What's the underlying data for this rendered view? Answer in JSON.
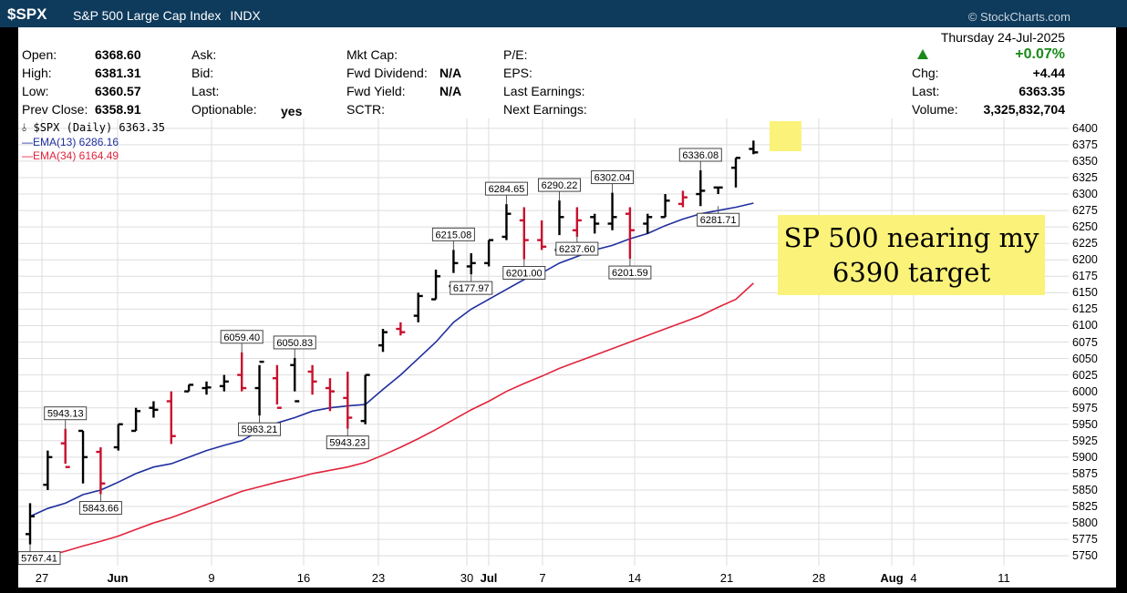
{
  "header": {
    "symbol": "$SPX",
    "name": "S&P 500 Large Cap Index",
    "exchange": "INDX",
    "credit": "© StockCharts.com"
  },
  "info": {
    "open_label": "Open:",
    "open_value": "6368.60",
    "high_label": "High:",
    "high_value": "6381.31",
    "low_label": "Low:",
    "low_value": "6360.57",
    "prev_label": "Prev Close:",
    "prev_value": "6358.91",
    "ask_label": "Ask:",
    "bid_label": "Bid:",
    "last_label": "Last:",
    "optionable_label": "Optionable:",
    "optionable_value": "yes",
    "mktcap_label": "Mkt Cap:",
    "fwd_div_label": "Fwd Dividend:",
    "fwd_div_value": "N/A",
    "fwd_yield_label": "Fwd Yield:",
    "fwd_yield_value": "N/A",
    "sctr_label": "SCTR:",
    "pe_label": "P/E:",
    "eps_label": "EPS:",
    "last_earn_label": "Last Earnings:",
    "next_earn_label": "Next Earnings:",
    "date": "Thursday  24-Jul-2025",
    "chg_pct": "+0.07%",
    "chg_label": "Chg:",
    "chg_value": "+4.44",
    "last2_label": "Last:",
    "last_value": "6363.35",
    "volume_label": "Volume:",
    "volume_value": "3,325,832,704"
  },
  "legend": {
    "main": "$SPX (Daily) 6363.35",
    "ema13": "EMA(13) 6286.16",
    "ema34": "EMA(34) 6164.49"
  },
  "annotation": {
    "line1": "SP 500 nearing my",
    "line2": "6390 target"
  },
  "colors": {
    "up": "#000000",
    "down": "#c8102e",
    "ema13": "#1f2f9e",
    "ema34": "#e0243c",
    "note": "#fbf27a"
  },
  "chart_data": {
    "type": "line",
    "title": "$SPX (Daily) 6363.35",
    "xlabel": "",
    "ylabel": "",
    "ylim": [
      5735,
      6415
    ],
    "yticks": [
      5750,
      5775,
      5800,
      5825,
      5850,
      5875,
      5900,
      5925,
      5950,
      5975,
      6000,
      6025,
      6050,
      6075,
      6100,
      6125,
      6150,
      6175,
      6200,
      6225,
      6250,
      6275,
      6300,
      6325,
      6350,
      6375,
      6400
    ],
    "xtick_labels": [
      "27",
      "Jun",
      "9",
      "16",
      "23",
      "30",
      "Jul",
      "7",
      "14",
      "21",
      "28",
      "Aug",
      "4",
      "11"
    ],
    "dates": [
      "2025-05-23",
      "2025-05-27",
      "2025-05-28",
      "2025-05-29",
      "2025-05-30",
      "2025-06-02",
      "2025-06-03",
      "2025-06-04",
      "2025-06-05",
      "2025-06-06",
      "2025-06-09",
      "2025-06-10",
      "2025-06-11",
      "2025-06-12",
      "2025-06-13",
      "2025-06-16",
      "2025-06-17",
      "2025-06-18",
      "2025-06-20",
      "2025-06-23",
      "2025-06-24",
      "2025-06-25",
      "2025-06-26",
      "2025-06-27",
      "2025-06-30",
      "2025-07-01",
      "2025-07-02",
      "2025-07-03",
      "2025-07-07",
      "2025-07-08",
      "2025-07-09",
      "2025-07-10",
      "2025-07-11",
      "2025-07-14",
      "2025-07-15",
      "2025-07-16",
      "2025-07-17",
      "2025-07-18",
      "2025-07-21",
      "2025-07-22",
      "2025-07-23",
      "2025-07-24"
    ],
    "ohlc": {
      "open": [
        5783,
        5858,
        5921,
        5940,
        5908,
        5915,
        5940,
        5975,
        5985,
        6000,
        6005,
        6008,
        6025,
        6005,
        6020,
        6040,
        6030,
        6005,
        5990,
        5955,
        6070,
        6095,
        6115,
        6140,
        6160,
        6190,
        6195,
        6235,
        6260,
        6230,
        6215,
        6245,
        6265,
        6255,
        6270,
        6255,
        6265,
        6285,
        6300,
        6310,
        6340,
        6368.6
      ],
      "high": [
        5830,
        5910,
        5943.13,
        5940,
        5915,
        5950,
        5975,
        5985,
        6000,
        6010,
        6015,
        6025,
        6059.4,
        6040,
        6040,
        6050.83,
        6040,
        6020,
        6030,
        6025,
        6095,
        6105,
        6150,
        6185,
        6215.08,
        6210,
        6230,
        6284.65,
        6280,
        6260,
        6290.22,
        6280,
        6270,
        6302.04,
        6280,
        6270,
        6300,
        6305,
        6336.08,
        6310,
        6355,
        6381.31
      ],
      "low": [
        5767.41,
        5850,
        5890,
        5860,
        5843.66,
        5910,
        5940,
        5960,
        5920,
        6000,
        5995,
        6000,
        6000,
        5963.21,
        5980,
        6000,
        5995,
        5970,
        5943.23,
        5950,
        6060,
        6085,
        6105,
        6140,
        6180,
        6177.97,
        6190,
        6230,
        6201.0,
        6215,
        6237.6,
        6235,
        6240,
        6245,
        6201.59,
        6240,
        6265,
        6280,
        6281.71,
        6300,
        6310,
        6360.57
      ],
      "close": [
        5810,
        5900,
        5885,
        5900,
        5860,
        5950,
        5970,
        5972,
        5932,
        6010,
        6006,
        6015,
        6005,
        6045,
        5975,
        5985,
        6015,
        6000,
        5960,
        6025,
        6090,
        6090,
        6145,
        6175,
        6195,
        6195,
        6230,
        6270,
        6230,
        6220,
        6265,
        6260,
        6255,
        6265,
        6245,
        6265,
        6290,
        6295,
        6305,
        6310,
        6355,
        6363.35
      ]
    },
    "up": [
      true,
      true,
      false,
      true,
      false,
      true,
      true,
      true,
      false,
      true,
      true,
      true,
      false,
      true,
      false,
      true,
      false,
      false,
      false,
      true,
      true,
      false,
      true,
      true,
      true,
      true,
      true,
      true,
      false,
      false,
      true,
      false,
      true,
      true,
      false,
      true,
      true,
      false,
      true,
      true,
      true,
      true
    ],
    "price_labels": [
      {
        "index": 0,
        "value": "5767.41",
        "pos": "below"
      },
      {
        "index": 2,
        "value": "5943.13",
        "pos": "above"
      },
      {
        "index": 4,
        "value": "5843.66",
        "pos": "below"
      },
      {
        "index": 12,
        "value": "6059.40",
        "pos": "above"
      },
      {
        "index": 13,
        "value": "5963.21",
        "pos": "below"
      },
      {
        "index": 15,
        "value": "6050.83",
        "pos": "above"
      },
      {
        "index": 18,
        "value": "5943.23",
        "pos": "below"
      },
      {
        "index": 24,
        "value": "6215.08",
        "pos": "above"
      },
      {
        "index": 25,
        "value": "6177.97",
        "pos": "below"
      },
      {
        "index": 27,
        "value": "6284.65",
        "pos": "above"
      },
      {
        "index": 28,
        "value": "6201.00",
        "pos": "below"
      },
      {
        "index": 30,
        "value": "6290.22",
        "pos": "above"
      },
      {
        "index": 31,
        "value": "6237.60",
        "pos": "below"
      },
      {
        "index": 33,
        "value": "6302.04",
        "pos": "above"
      },
      {
        "index": 34,
        "value": "6201.59",
        "pos": "below"
      },
      {
        "index": 38,
        "value": "6336.08",
        "pos": "above"
      },
      {
        "index": 39,
        "value": "6281.71",
        "pos": "below"
      }
    ],
    "series": [
      {
        "name": "EMA(13) 6286.16",
        "values": [
          5810,
          5822,
          5830,
          5843,
          5850,
          5862,
          5875,
          5885,
          5890,
          5900,
          5910,
          5918,
          5925,
          5940,
          5952,
          5960,
          5970,
          5975,
          5978,
          5980,
          6003,
          6025,
          6050,
          6075,
          6105,
          6125,
          6140,
          6155,
          6170,
          6180,
          6195,
          6205,
          6215,
          6222,
          6232,
          6240,
          6252,
          6262,
          6270,
          6275,
          6280,
          6286.16
        ]
      },
      {
        "name": "EMA(34) 6164.49",
        "values": [
          5745,
          5750,
          5757,
          5765,
          5772,
          5780,
          5790,
          5800,
          5808,
          5818,
          5828,
          5838,
          5848,
          5855,
          5862,
          5868,
          5875,
          5880,
          5885,
          5892,
          5903,
          5915,
          5928,
          5942,
          5957,
          5972,
          5985,
          6000,
          6012,
          6023,
          6035,
          6045,
          6055,
          6065,
          6075,
          6085,
          6095,
          6105,
          6115,
          6128,
          6140,
          6164.49
        ]
      }
    ]
  }
}
